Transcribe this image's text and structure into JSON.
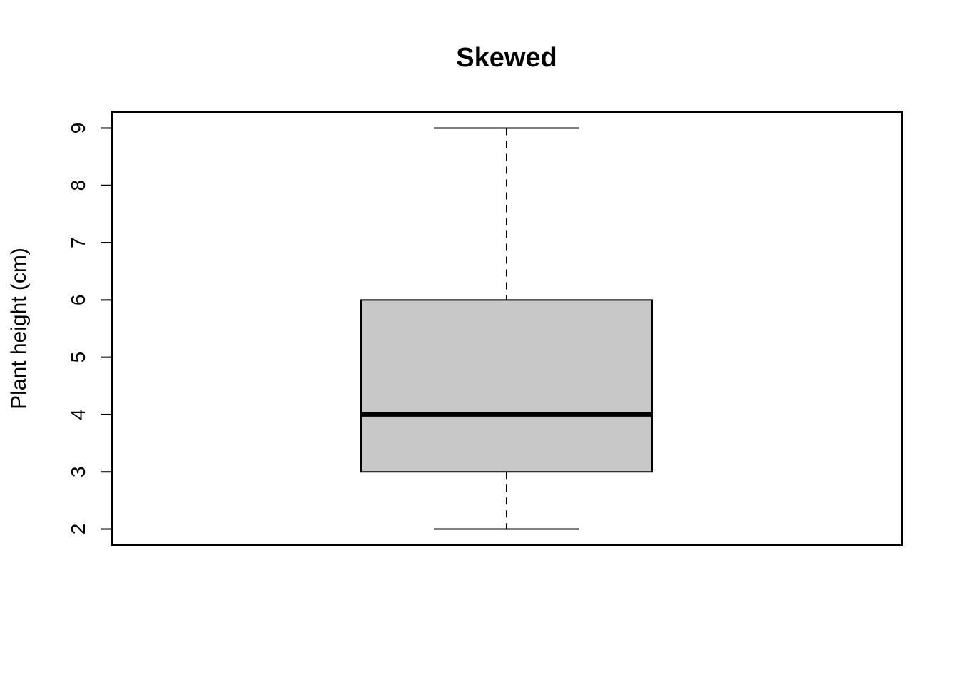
{
  "chart_data": {
    "type": "boxplot",
    "title": "Skewed",
    "xlabel": "",
    "ylabel": "Plant height (cm)",
    "ylim": [
      1.72,
      9.28
    ],
    "yticks": [
      2,
      3,
      4,
      5,
      6,
      7,
      8,
      9
    ],
    "grid": false,
    "legend": "none",
    "box": {
      "min": 2,
      "q1": 3,
      "median": 4,
      "q3": 6,
      "max": 9
    },
    "colors": {
      "box_fill": "#c8c8c8",
      "stroke": "#000000"
    }
  }
}
